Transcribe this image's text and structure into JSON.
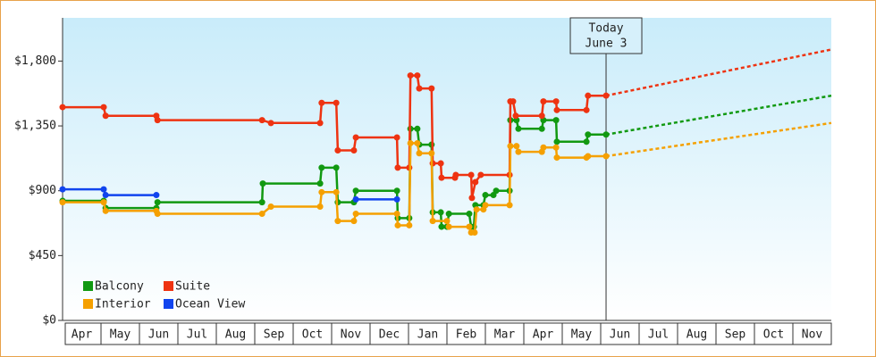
{
  "chart_data": {
    "type": "line",
    "xlim": [
      0,
      20
    ],
    "ylim": [
      0,
      2100
    ],
    "xticks": [
      {
        "value": 0.5,
        "label": "Apr"
      },
      {
        "value": 1.5,
        "label": "May"
      },
      {
        "value": 2.5,
        "label": "Jun"
      },
      {
        "value": 3.5,
        "label": "Jul"
      },
      {
        "value": 4.5,
        "label": "Aug"
      },
      {
        "value": 5.5,
        "label": "Sep"
      },
      {
        "value": 6.5,
        "label": "Oct"
      },
      {
        "value": 7.5,
        "label": "Nov"
      },
      {
        "value": 8.5,
        "label": "Dec"
      },
      {
        "value": 9.5,
        "label": "Jan"
      },
      {
        "value": 10.5,
        "label": "Feb"
      },
      {
        "value": 11.5,
        "label": "Mar"
      },
      {
        "value": 12.5,
        "label": "Apr"
      },
      {
        "value": 13.5,
        "label": "May"
      },
      {
        "value": 14.5,
        "label": "Jun"
      },
      {
        "value": 15.5,
        "label": "Jul"
      },
      {
        "value": 16.5,
        "label": "Aug"
      },
      {
        "value": 17.5,
        "label": "Sep"
      },
      {
        "value": 18.5,
        "label": "Oct"
      },
      {
        "value": 19.5,
        "label": "Nov"
      }
    ],
    "yticks": [
      {
        "value": 0,
        "label": "$0"
      },
      {
        "value": 450,
        "label": "$450"
      },
      {
        "value": 900,
        "label": "$900"
      },
      {
        "value": 1350,
        "label": "$1,350"
      },
      {
        "value": 1800,
        "label": "$1,800"
      }
    ],
    "today": {
      "x": 14.14,
      "label": [
        "Today",
        "June 3"
      ]
    },
    "series": [
      {
        "name": "Balcony",
        "color": "#119911",
        "x": [
          0,
          1.07,
          1.12,
          2.44,
          2.47,
          5.19,
          5.21,
          6.7,
          6.74,
          7.12,
          7.16,
          7.58,
          7.63,
          8.7,
          8.72,
          9.02,
          9.05,
          9.23,
          9.28,
          9.6,
          9.63,
          9.84,
          9.86,
          10,
          10.05,
          10.58,
          10.63,
          10.7,
          10.74,
          10.95,
          11,
          11.21,
          11.28,
          11.63,
          11.65,
          11.81,
          11.86,
          12.47,
          12.51,
          12.84,
          12.86,
          13.63,
          13.67,
          14.14
        ],
        "values": [
          830,
          830,
          780,
          780,
          820,
          820,
          950,
          950,
          1060,
          1060,
          820,
          820,
          900,
          900,
          710,
          710,
          1330,
          1330,
          1220,
          1220,
          750,
          750,
          650,
          650,
          740,
          740,
          650,
          650,
          800,
          800,
          870,
          870,
          900,
          900,
          1390,
          1390,
          1330,
          1330,
          1390,
          1390,
          1240,
          1240,
          1290,
          1290
        ],
        "forecast_x": [
          14.14,
          20
        ],
        "forecast_values": [
          1290,
          1560
        ]
      },
      {
        "name": "Suite",
        "color": "#ee3311",
        "x": [
          0,
          1.07,
          1.12,
          2.44,
          2.47,
          5.19,
          5.42,
          6.7,
          6.74,
          7.12,
          7.16,
          7.58,
          7.63,
          8.7,
          8.72,
          9.02,
          9.05,
          9.23,
          9.28,
          9.6,
          9.63,
          9.84,
          9.86,
          10.21,
          10.23,
          10.63,
          10.65,
          10.74,
          10.88,
          11.63,
          11.65,
          11.72,
          11.79,
          12.47,
          12.51,
          12.84,
          12.86,
          13.63,
          13.67,
          14.14
        ],
        "values": [
          1480,
          1480,
          1420,
          1420,
          1390,
          1390,
          1370,
          1370,
          1510,
          1510,
          1180,
          1180,
          1270,
          1270,
          1060,
          1060,
          1700,
          1700,
          1610,
          1610,
          1090,
          1090,
          990,
          990,
          1010,
          1010,
          850,
          960,
          1010,
          1010,
          1520,
          1520,
          1420,
          1420,
          1520,
          1520,
          1460,
          1460,
          1560,
          1560
        ],
        "forecast_x": [
          14.14,
          20
        ],
        "forecast_values": [
          1560,
          1880
        ]
      },
      {
        "name": "Interior",
        "color": "#f5a000",
        "x": [
          0,
          1.07,
          1.12,
          2.44,
          2.47,
          5.19,
          5.42,
          6.7,
          6.74,
          7.12,
          7.16,
          7.58,
          7.63,
          8.7,
          8.72,
          9.02,
          9.05,
          9.23,
          9.28,
          9.6,
          9.63,
          10,
          10.05,
          10.58,
          10.63,
          10.72,
          10.77,
          10.95,
          11,
          11.63,
          11.65,
          11.81,
          11.86,
          12.47,
          12.51,
          12.84,
          12.86,
          13.63,
          13.67,
          14.14
        ],
        "values": [
          820,
          820,
          760,
          760,
          740,
          740,
          790,
          790,
          890,
          890,
          690,
          690,
          740,
          740,
          660,
          660,
          1230,
          1230,
          1160,
          1160,
          690,
          690,
          650,
          650,
          610,
          610,
          770,
          770,
          800,
          800,
          1210,
          1210,
          1170,
          1170,
          1200,
          1200,
          1130,
          1130,
          1140,
          1140
        ],
        "forecast_x": [
          14.14,
          20
        ],
        "forecast_values": [
          1140,
          1370
        ]
      },
      {
        "name": "Ocean View",
        "color": "#1144ee",
        "x": [
          0,
          1.07,
          1.12,
          2.44,
          null,
          7.63,
          8.7
        ],
        "values": [
          910,
          910,
          870,
          870,
          null,
          840,
          840
        ]
      }
    ]
  }
}
